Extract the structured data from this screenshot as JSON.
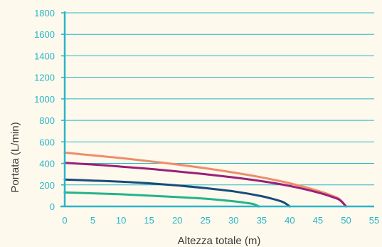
{
  "colors": {
    "background": "#fdf9ec",
    "axis": "#2ab5c8",
    "grid": "#2ab5c8",
    "tick_label": "#2ab5c8",
    "axis_label": "#3a3a3a"
  },
  "chart_data": {
    "type": "line",
    "title": "",
    "xlabel": "Altezza totale (m)",
    "ylabel": "Portata (L/min)",
    "xlim": [
      0,
      55
    ],
    "ylim": [
      0,
      1800
    ],
    "x_ticks": [
      0,
      5,
      10,
      15,
      20,
      25,
      30,
      35,
      40,
      45,
      50,
      55
    ],
    "y_ticks": [
      0,
      200,
      400,
      600,
      800,
      1000,
      1200,
      1400,
      1600,
      1800
    ],
    "grid": "horizontal",
    "series": [
      {
        "color": "#ee8d6b",
        "x": [
          0,
          5,
          10,
          15,
          20,
          25,
          30,
          35,
          40,
          45,
          48,
          49,
          50
        ],
        "y": [
          500,
          475,
          450,
          420,
          390,
          355,
          315,
          270,
          215,
          145,
          90,
          60,
          0
        ]
      },
      {
        "color": "#9b1f7a",
        "x": [
          0,
          5,
          10,
          15,
          20,
          25,
          30,
          35,
          40,
          45,
          48,
          49,
          50
        ],
        "y": [
          405,
          390,
          370,
          350,
          325,
          300,
          270,
          235,
          190,
          130,
          80,
          55,
          0
        ]
      },
      {
        "color": "#174b7c",
        "x": [
          0,
          5,
          10,
          15,
          20,
          25,
          30,
          35,
          38,
          39,
          40
        ],
        "y": [
          250,
          240,
          230,
          215,
          195,
          170,
          140,
          95,
          55,
          35,
          0
        ]
      },
      {
        "color": "#25b38b",
        "x": [
          0,
          5,
          10,
          15,
          20,
          25,
          30,
          32,
          33.5,
          34.5
        ],
        "y": [
          130,
          122,
          113,
          100,
          87,
          72,
          48,
          35,
          22,
          0
        ]
      }
    ]
  }
}
